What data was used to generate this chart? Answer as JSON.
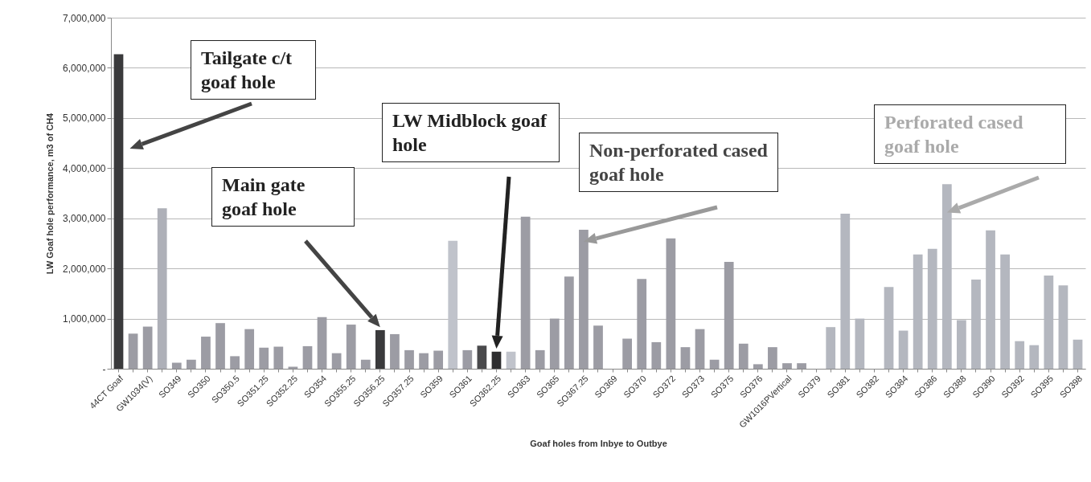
{
  "chart_data": {
    "type": "bar",
    "xlabel": "Goaf holes from Inbye to Outbye",
    "ylabel": "LW Goaf hole performance, m3 of CH4",
    "categories": [
      "44CT Goaf",
      null,
      "GW1034(V)",
      null,
      "SO349",
      null,
      "SO350",
      null,
      "SO350.5",
      null,
      "SO351.25",
      null,
      "SO352.25",
      null,
      "SO354",
      null,
      "SO355.25",
      null,
      "SO356.25",
      null,
      "SO357.25",
      null,
      "SO359",
      null,
      "SO361",
      null,
      "SO362.25",
      null,
      "SO363",
      null,
      "SO365",
      null,
      "SO367.25",
      null,
      "SO369",
      null,
      "SO370",
      null,
      "SO372",
      null,
      "SO373",
      null,
      "SO375",
      null,
      "SO376",
      null,
      "GW1016PVertical",
      null,
      "SO379",
      null,
      "SO381",
      null,
      "SO382",
      null,
      "SO384",
      null,
      "SO386",
      null,
      "SO388",
      null,
      "SO390",
      null,
      "SO392",
      null,
      "SO395",
      null,
      "SO398"
    ],
    "values": [
      6270000,
      700000,
      840000,
      3200000,
      120000,
      180000,
      640000,
      910000,
      250000,
      790000,
      420000,
      440000,
      40000,
      450000,
      1030000,
      310000,
      880000,
      180000,
      770000,
      690000,
      370000,
      310000,
      360000,
      2550000,
      370000,
      460000,
      340000,
      340000,
      3030000,
      370000,
      1000000,
      1840000,
      2770000,
      860000,
      0,
      600000,
      1790000,
      530000,
      2600000,
      430000,
      790000,
      180000,
      2130000,
      500000,
      90000,
      430000,
      110000,
      110000,
      0,
      830000,
      3090000,
      1000000,
      0,
      1630000,
      760000,
      2280000,
      2390000,
      3680000,
      970000,
      1780000,
      2760000,
      2280000,
      550000,
      470000,
      1860000,
      1660000,
      580000
    ],
    "colors": [
      "#3a3a3c",
      "#9c9ca4",
      "#9c9ca4",
      "#aeb0b8",
      "#9c9ca4",
      "#9c9ca4",
      "#9c9ca4",
      "#9c9ca4",
      "#9c9ca4",
      "#9c9ca4",
      "#9c9ca4",
      "#9c9ca4",
      "#9c9ca4",
      "#9c9ca4",
      "#9c9ca4",
      "#9c9ca4",
      "#9c9ca4",
      "#9c9ca4",
      "#3a3a3c",
      "#9c9ca4",
      "#9c9ca4",
      "#9c9ca4",
      "#9c9ca4",
      "#c0c3cb",
      "#9c9ca4",
      "#4a4a4c",
      "#2e2e30",
      "#c0c3cb",
      "#9c9ca4",
      "#9c9ca4",
      "#9c9ca4",
      "#9c9ca4",
      "#9c9ca4",
      "#9c9ca4",
      "#9c9ca4",
      "#9c9ca4",
      "#9c9ca4",
      "#9c9ca4",
      "#9c9ca4",
      "#9c9ca4",
      "#9c9ca4",
      "#9c9ca4",
      "#9c9ca4",
      "#9c9ca4",
      "#9c9ca4",
      "#9c9ca4",
      "#9c9ca4",
      "#9c9ca4",
      "#9c9ca4",
      "#b4b7bf",
      "#b4b7bf",
      "#b4b7bf",
      "#b4b7bf",
      "#b4b7bf",
      "#b4b7bf",
      "#b4b7bf",
      "#b4b7bf",
      "#b4b7bf",
      "#b4b7bf",
      "#b4b7bf",
      "#b4b7bf",
      "#b4b7bf",
      "#b4b7bf",
      "#b4b7bf",
      "#b4b7bf",
      "#b4b7bf",
      "#b4b7bf"
    ],
    "ylim": [
      0,
      7000000
    ],
    "yticks": [
      {
        "value": 0,
        "label": "-"
      },
      {
        "value": 1000000,
        "label": "1,000,000"
      },
      {
        "value": 2000000,
        "label": "2,000,000"
      },
      {
        "value": 3000000,
        "label": "3,000,000"
      },
      {
        "value": 4000000,
        "label": "4,000,000"
      },
      {
        "value": 5000000,
        "label": "5,000,000"
      },
      {
        "value": 6000000,
        "label": "6,000,000"
      },
      {
        "value": 7000000,
        "label": "7,000,000"
      }
    ],
    "grid": "y",
    "annotations": [
      "Tailgate c/t goaf hole",
      "Main gate goaf hole",
      "LW Midblock goaf hole",
      "Non-perforated cased goaf hole",
      "Perforated cased goaf hole"
    ]
  }
}
